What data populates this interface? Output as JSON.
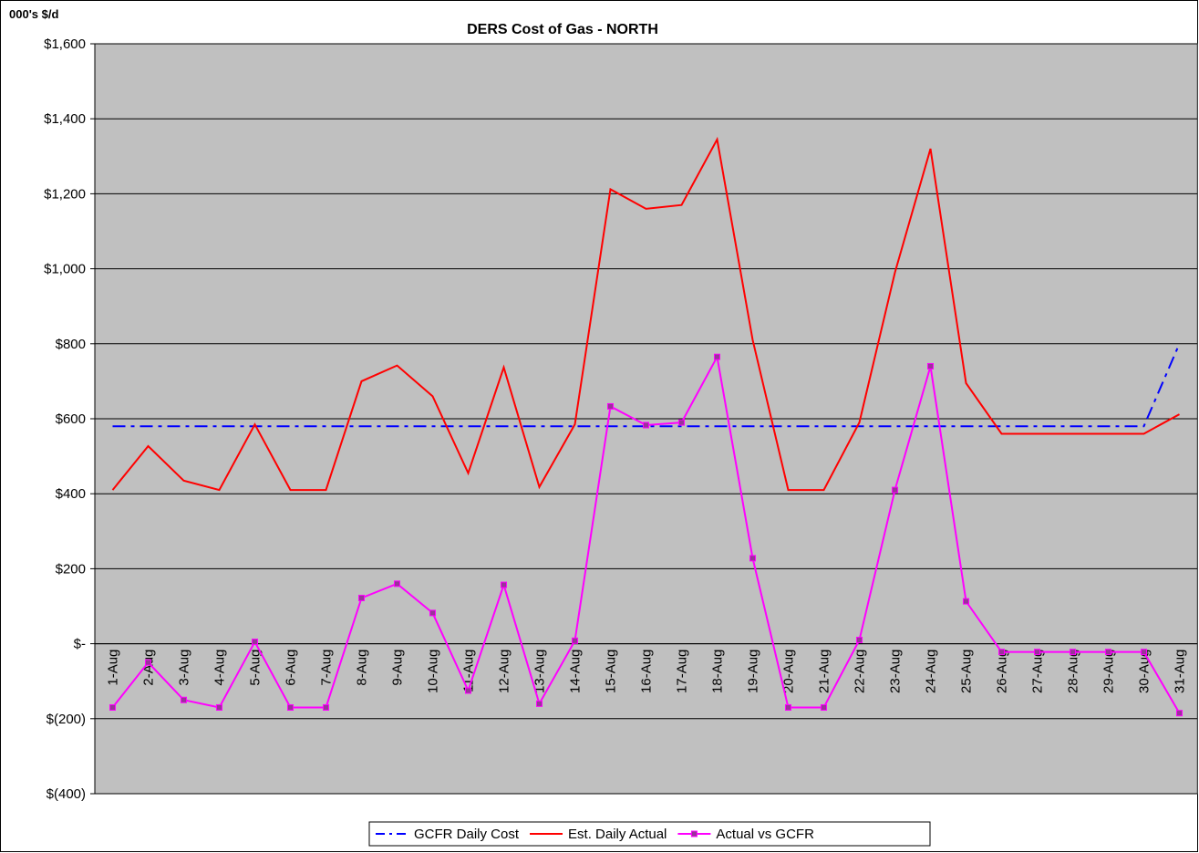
{
  "chart_data": {
    "type": "line",
    "title": "DERS Cost of Gas - NORTH",
    "y_axis_label": "000's $/d",
    "categories": [
      "1-Aug",
      "2-Aug",
      "3-Aug",
      "4-Aug",
      "5-Aug",
      "6-Aug",
      "7-Aug",
      "8-Aug",
      "9-Aug",
      "10-Aug",
      "11-Aug",
      "12-Aug",
      "13-Aug",
      "14-Aug",
      "15-Aug",
      "16-Aug",
      "17-Aug",
      "18-Aug",
      "19-Aug",
      "20-Aug",
      "21-Aug",
      "22-Aug",
      "23-Aug",
      "24-Aug",
      "25-Aug",
      "26-Aug",
      "27-Aug",
      "28-Aug",
      "29-Aug",
      "30-Aug",
      "31-Aug"
    ],
    "series": [
      {
        "name": "GCFR Daily Cost",
        "color": "#0000ff",
        "dash": "dash-dot",
        "values": [
          580,
          580,
          580,
          580,
          580,
          580,
          580,
          580,
          580,
          580,
          580,
          580,
          580,
          580,
          580,
          580,
          580,
          580,
          580,
          580,
          580,
          580,
          580,
          580,
          580,
          580,
          580,
          580,
          580,
          580,
          800
        ]
      },
      {
        "name": "Est. Daily Actual",
        "color": "#ff0000",
        "values": [
          410,
          527,
          435,
          410,
          585,
          410,
          410,
          700,
          742,
          660,
          455,
          737,
          418,
          585,
          1212,
          1160,
          1170,
          1345,
          810,
          410,
          410,
          590,
          990,
          1320,
          695,
          560,
          560,
          560,
          560,
          560,
          612
        ]
      },
      {
        "name": "Actual vs GCFR",
        "color": "#ff00ff",
        "marker": "square",
        "values": [
          -170,
          -50,
          -150,
          -170,
          5,
          -170,
          -170,
          122,
          160,
          82,
          -125,
          157,
          -160,
          8,
          633,
          583,
          590,
          765,
          228,
          -170,
          -170,
          10,
          410,
          740,
          113,
          -22,
          -22,
          -22,
          -22,
          -22,
          -185
        ]
      }
    ],
    "ylim": [
      -400,
      1600
    ],
    "yticks": [
      {
        "value": -400,
        "label": "$(400)"
      },
      {
        "value": -200,
        "label": "$(200)"
      },
      {
        "value": 0,
        "label": "$-"
      },
      {
        "value": 200,
        "label": "$200"
      },
      {
        "value": 400,
        "label": "$400"
      },
      {
        "value": 600,
        "label": "$600"
      },
      {
        "value": 800,
        "label": "$800"
      },
      {
        "value": 1000,
        "label": "$1,000"
      },
      {
        "value": 1200,
        "label": "$1,200"
      },
      {
        "value": 1400,
        "label": "$1,400"
      },
      {
        "value": 1600,
        "label": "$1,600"
      }
    ],
    "grid": true,
    "legend": "bottom"
  }
}
